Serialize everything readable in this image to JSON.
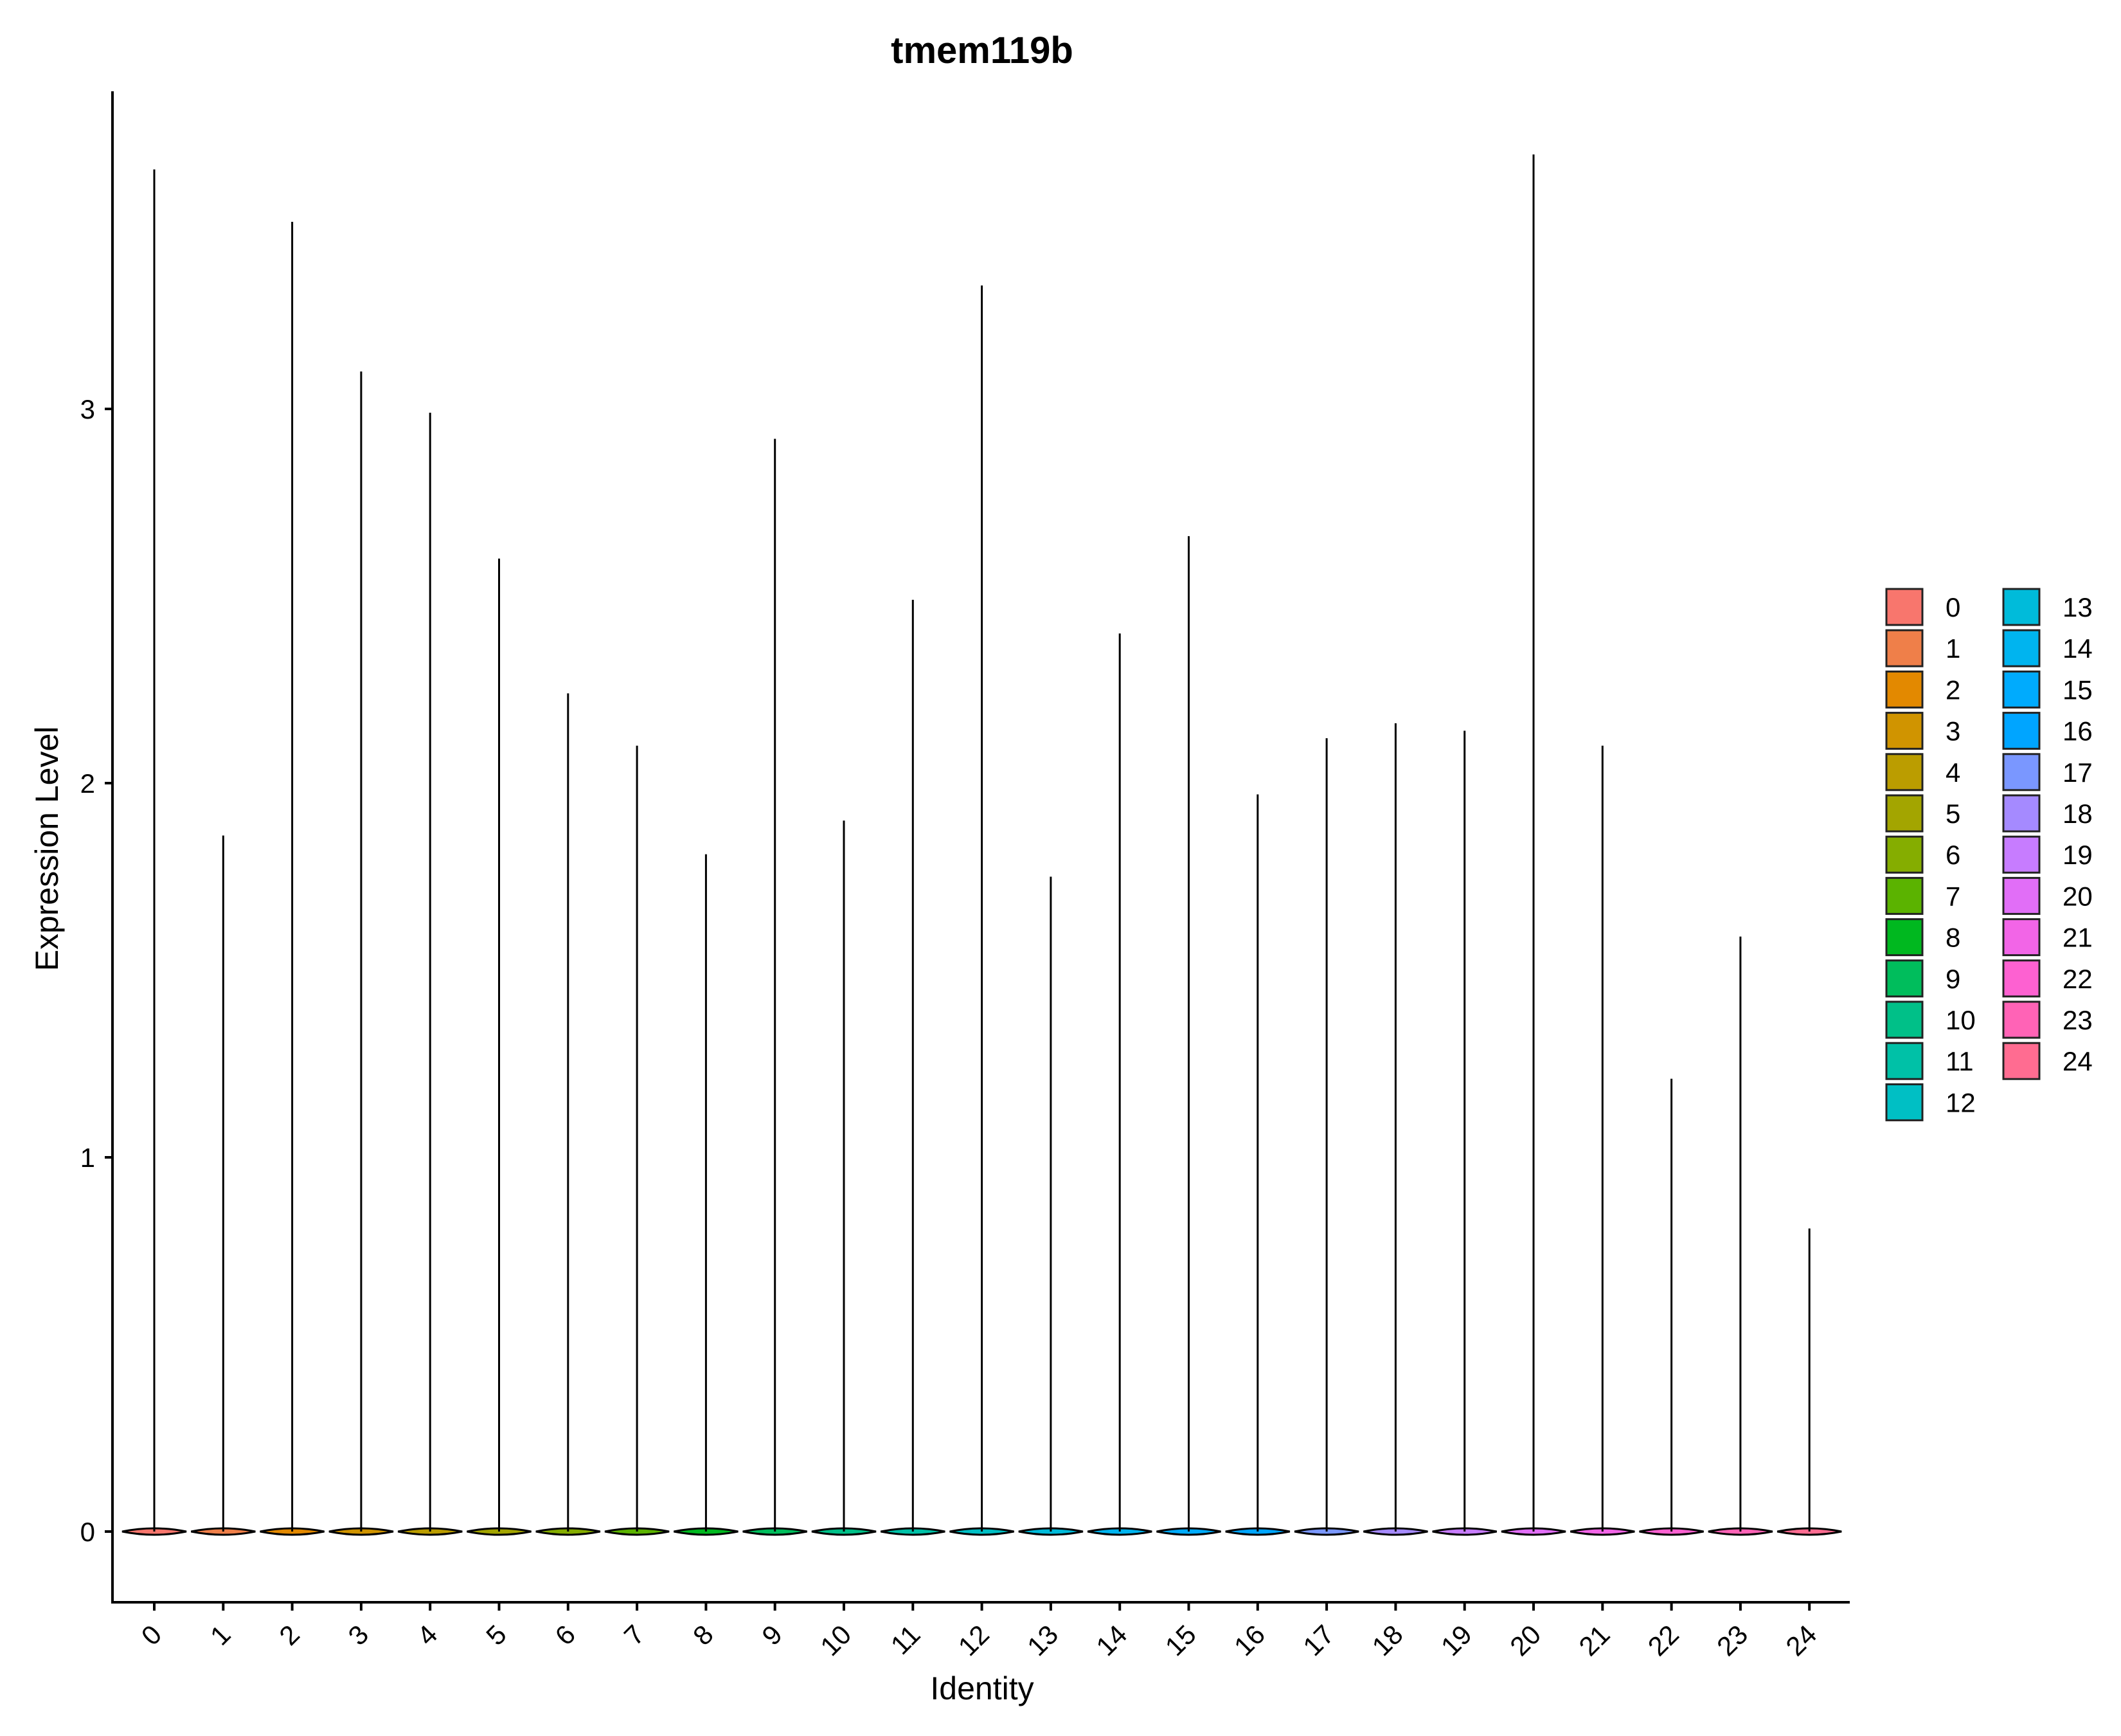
{
  "chart_data": {
    "type": "violin",
    "title": "tmem119b",
    "xlabel": "Identity",
    "ylabel": "Expression Level",
    "ylim": [
      -0.18,
      3.85
    ],
    "yticks": [
      "0",
      "1",
      "2",
      "3"
    ],
    "grid": false,
    "legend_placement": "right",
    "legend_columns": 2,
    "categories": [
      "0",
      "1",
      "2",
      "3",
      "4",
      "5",
      "6",
      "7",
      "8",
      "9",
      "10",
      "11",
      "12",
      "13",
      "14",
      "15",
      "16",
      "17",
      "18",
      "19",
      "20",
      "21",
      "22",
      "23",
      "24"
    ],
    "max_values": [
      3.64,
      1.86,
      3.5,
      3.1,
      2.99,
      2.6,
      2.24,
      2.1,
      1.81,
      2.92,
      1.9,
      2.49,
      3.33,
      1.75,
      2.4,
      2.66,
      1.97,
      2.12,
      2.16,
      2.14,
      3.68,
      2.1,
      1.21,
      1.59,
      0.81
    ],
    "colors": [
      "#F8766D",
      "#EF7F49",
      "#E38900",
      "#D09400",
      "#BB9D00",
      "#A3A500",
      "#85AD00",
      "#5BB300",
      "#00B81F",
      "#00BD5C",
      "#00C088",
      "#00C1A7",
      "#00BFC4",
      "#00BBDA",
      "#00B4EF",
      "#00ABFD",
      "#00A5FF",
      "#7A97FF",
      "#A58AFF",
      "#C77CFF",
      "#E16EF7",
      "#F265E7",
      "#FD61D1",
      "#FF63B6",
      "#FF6C91"
    ]
  }
}
